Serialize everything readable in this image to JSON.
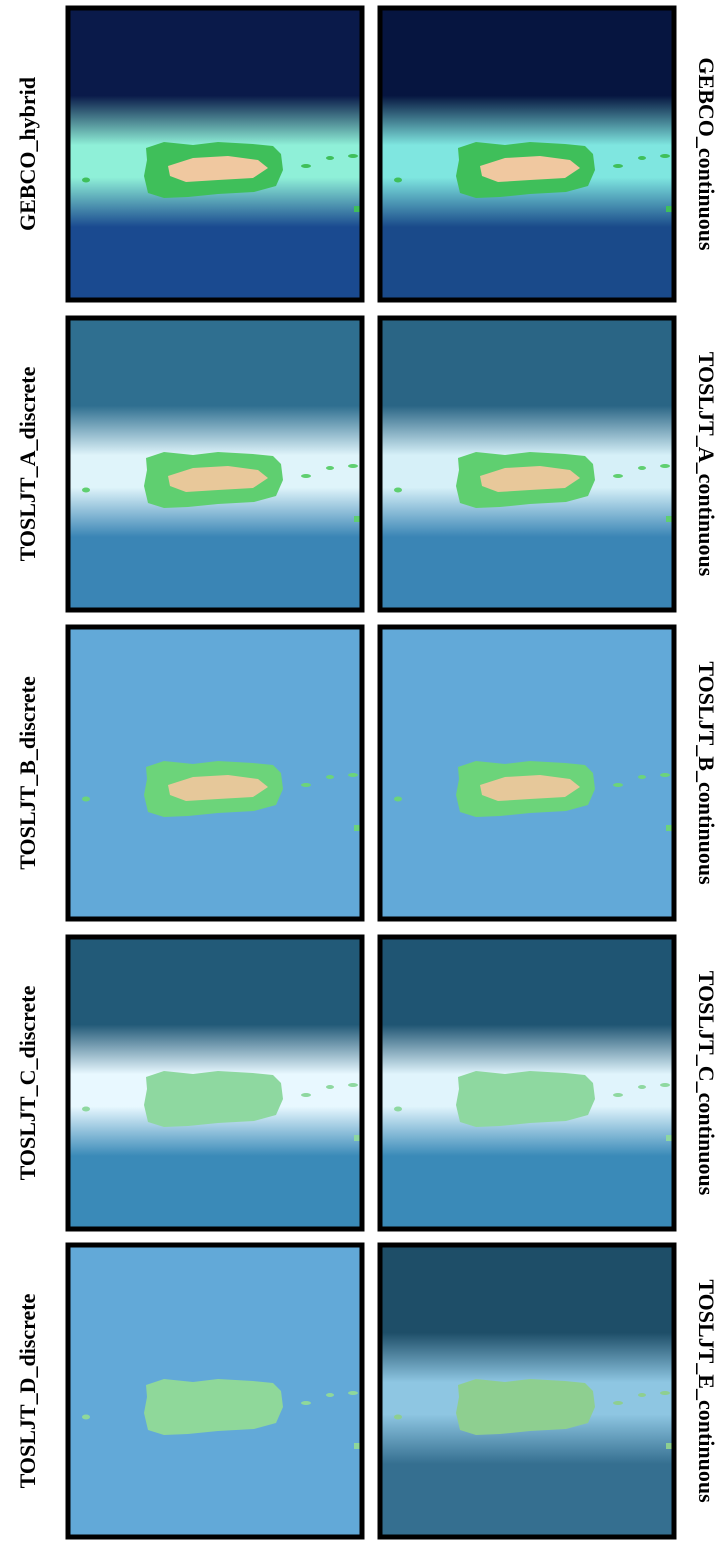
{
  "panels": [
    {
      "label": "GEBCO_hybrid"
    },
    {
      "label": "GEBCO_continuous"
    },
    {
      "label": "TOSLJT_A_discrete"
    },
    {
      "label": "TOSLJT_A_continuous"
    },
    {
      "label": "TOSLJT_B_discrete"
    },
    {
      "label": "TOSLJT_B_continuous"
    },
    {
      "label": "TOSLJT_C_discrete"
    },
    {
      "label": "TOSLJT_C_continuous"
    },
    {
      "label": "TOSLJT_D_discrete"
    },
    {
      "label": "TOSLJT_E_continuous"
    }
  ]
}
